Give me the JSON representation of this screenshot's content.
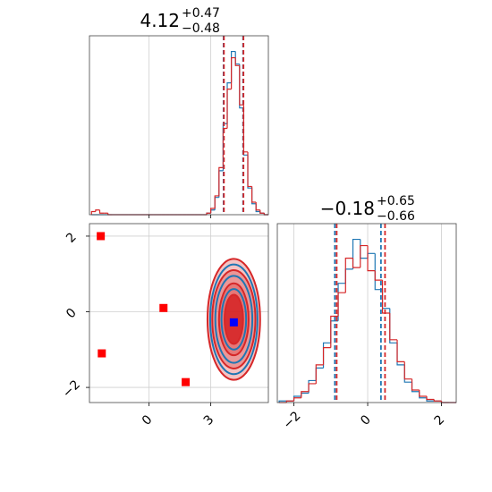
{
  "chart_data": [
    {
      "type": "histogram",
      "title": {
        "text": "4.12",
        "upper": "+0.47",
        "lower": "−0.48"
      },
      "xlim": [
        -2.9,
        5.8
      ],
      "ylim": [
        0,
        114
      ],
      "xticks": [
        0,
        3
      ],
      "xtick_labels": false,
      "grid": true,
      "bins": [
        -2.8,
        -2.6,
        -2.4,
        -2.2,
        -2,
        -1.8,
        -1.6,
        -1.4,
        -1.2,
        -1,
        -0.8,
        -0.6,
        -0.4,
        -0.2,
        0,
        0.2,
        0.4,
        0.6,
        0.8,
        1,
        1.2,
        1.4,
        1.6,
        1.8,
        2,
        2.2,
        2.4,
        2.6,
        2.8,
        3,
        3.2,
        3.4,
        3.6,
        3.8,
        4,
        4.2,
        4.4,
        4.6,
        4.8,
        5,
        5.2,
        5.4,
        5.6,
        5.8
      ],
      "series": [
        {
          "color": "#1f77b4",
          "quantiles": [
            3.62,
            4.57
          ],
          "values": [
            0,
            0,
            0,
            0,
            0,
            0,
            0,
            0,
            0,
            0,
            0,
            0,
            0,
            0,
            0,
            0,
            0,
            0,
            0,
            0,
            0,
            0,
            0,
            0,
            0,
            0,
            0,
            0,
            1,
            3,
            11,
            28,
            58,
            84,
            104,
            96,
            68,
            38,
            17,
            7,
            2,
            1,
            0
          ]
        },
        {
          "color": "#d62728",
          "quantiles": [
            3.64,
            4.59
          ],
          "values": [
            2,
            3,
            1,
            1,
            0,
            0,
            0,
            0,
            0,
            0,
            0,
            0,
            0,
            0,
            0,
            0,
            0,
            0,
            0,
            0,
            0,
            0,
            0,
            0,
            0,
            0,
            0,
            0,
            1,
            4,
            12,
            30,
            55,
            80,
            100,
            95,
            70,
            40,
            18,
            8,
            3,
            1,
            0
          ]
        }
      ]
    },
    {
      "type": "contour",
      "xlim": [
        -2.9,
        5.8
      ],
      "ylim": [
        -2.4,
        2.33
      ],
      "grid": true,
      "xticks": [
        0,
        3
      ],
      "yticks": [
        {
          "value": -2,
          "label": "−2"
        },
        0,
        2
      ],
      "contours": [
        {
          "color": "#d62728",
          "filled": true,
          "x": 4.12,
          "y": -0.2,
          "rx": [
            1.28,
            1.05,
            0.72,
            0.45
          ],
          "ry": [
            1.6,
            1.3,
            0.95,
            0.65
          ]
        },
        {
          "color": "#1f77b4",
          "filled": false,
          "x": 4.12,
          "y": -0.2,
          "rx": [
            1.15,
            0.9,
            0.6
          ],
          "ry": [
            1.45,
            1.15,
            0.8
          ]
        }
      ],
      "points": {
        "color": "#ff0000",
        "x": [
          -2.35,
          -2.3,
          0.7,
          1.78
        ],
        "y": [
          2.0,
          -1.1,
          0.1,
          -1.86
        ]
      },
      "marker": {
        "color": "#0000ff",
        "x": 4.12,
        "y": -0.28
      }
    },
    {
      "type": "histogram",
      "title": {
        "text": "−0.18",
        "upper": "+0.65",
        "lower": "−0.66"
      },
      "xlim": [
        -2.45,
        2.4
      ],
      "ylim": [
        0,
        114
      ],
      "grid": true,
      "xtick_labels": true,
      "xticks": [
        {
          "value": -2,
          "label": "−2"
        },
        0,
        2
      ],
      "bins": [
        -2.4,
        -2.2,
        -2,
        -1.8,
        -1.6,
        -1.4,
        -1.2,
        -1,
        -0.8,
        -0.6,
        -0.4,
        -0.2,
        0,
        0.2,
        0.4,
        0.6,
        0.8,
        1,
        1.2,
        1.4,
        1.6,
        1.8,
        2,
        2.2,
        2.4
      ],
      "series": [
        {
          "color": "#1f77b4",
          "quantiles": [
            -0.89,
            0.36
          ],
          "values": [
            1,
            1,
            4,
            6,
            14,
            22,
            38,
            52,
            76,
            85,
            104,
            92,
            95,
            72,
            60,
            38,
            24,
            13,
            7,
            3,
            1,
            1,
            0,
            0
          ]
        },
        {
          "color": "#d62728",
          "quantiles": [
            -0.84,
            0.47
          ],
          "values": [
            0,
            1,
            3,
            7,
            12,
            24,
            35,
            55,
            70,
            92,
            86,
            100,
            84,
            78,
            57,
            40,
            26,
            15,
            8,
            4,
            2,
            1,
            0,
            0
          ]
        }
      ]
    }
  ]
}
